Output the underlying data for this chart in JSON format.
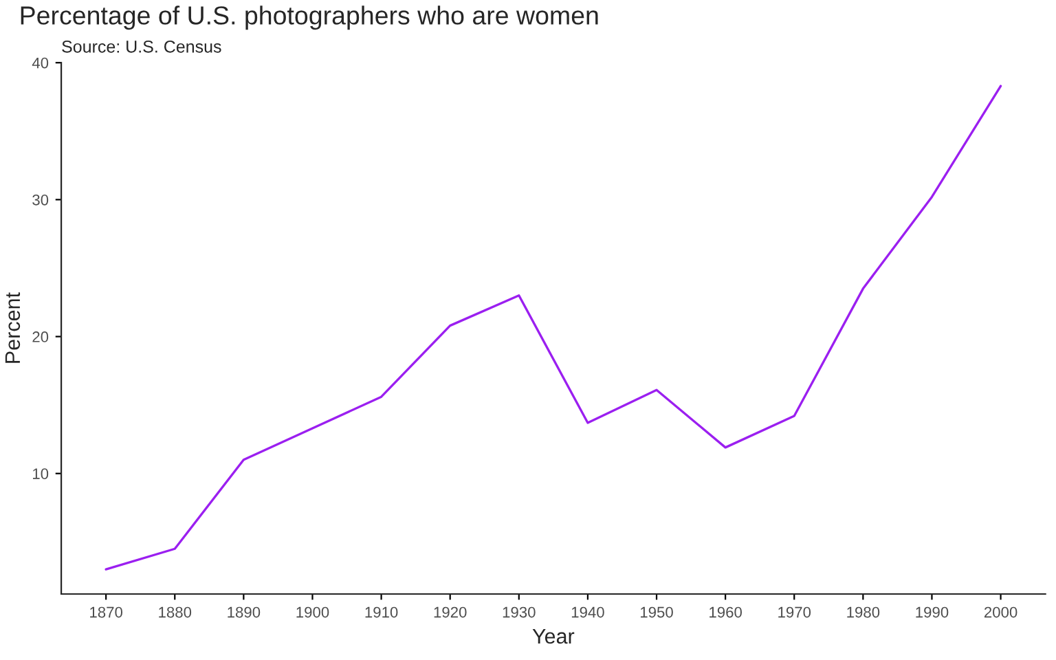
{
  "chart_data": {
    "type": "line",
    "title": "Percentage of U.S. photographers who are women",
    "subtitle": "Source: U.S. Census",
    "xlabel": "Year",
    "ylabel": "Percent",
    "x": [
      1870,
      1880,
      1890,
      1900,
      1910,
      1920,
      1930,
      1940,
      1950,
      1960,
      1970,
      1980,
      1990,
      2000
    ],
    "series": [
      {
        "color": "#9b1ff0",
        "values": [
          3.0,
          4.5,
          11.0,
          13.3,
          15.6,
          20.8,
          23.0,
          13.7,
          16.1,
          11.9,
          14.2,
          23.5,
          30.2,
          38.3
        ]
      }
    ],
    "xlim": [
      1863.5,
      2006.5
    ],
    "ylim": [
      1.2,
      40.0
    ],
    "xticks": [
      1870,
      1880,
      1890,
      1900,
      1910,
      1920,
      1930,
      1940,
      1950,
      1960,
      1970,
      1980,
      1990,
      2000
    ],
    "yticks": [
      10,
      20,
      30,
      40
    ],
    "grid": false,
    "marker": "none",
    "line_style": "solid"
  }
}
